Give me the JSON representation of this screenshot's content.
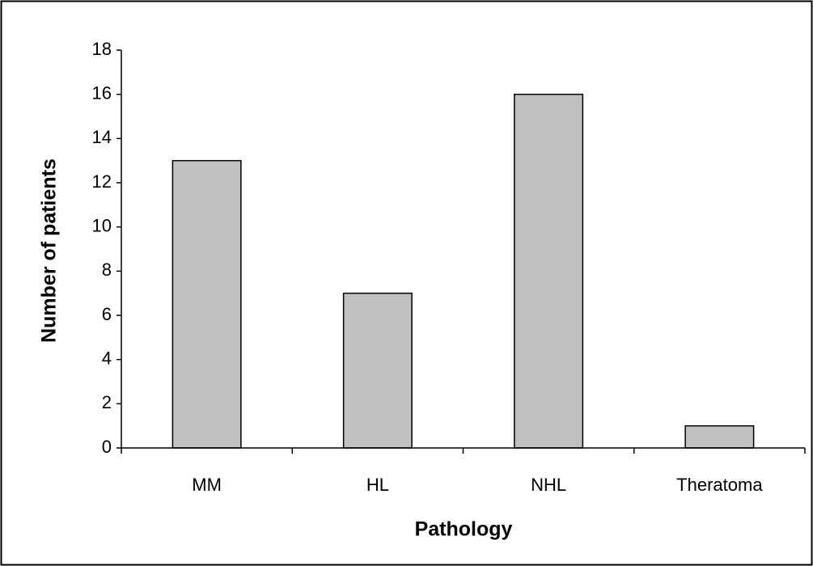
{
  "chart_data": {
    "type": "bar",
    "x_label": "Pathology",
    "y_label": "Number of patients",
    "categories": [
      "MM",
      "HL",
      "NHL",
      "Theratoma"
    ],
    "values": [
      13,
      7,
      16,
      1
    ],
    "color": "#c0c0c0",
    "ylim": [
      0,
      18
    ],
    "yticks": [
      0,
      2,
      4,
      6,
      8,
      10,
      12,
      14,
      16,
      18
    ],
    "grid": false
  }
}
